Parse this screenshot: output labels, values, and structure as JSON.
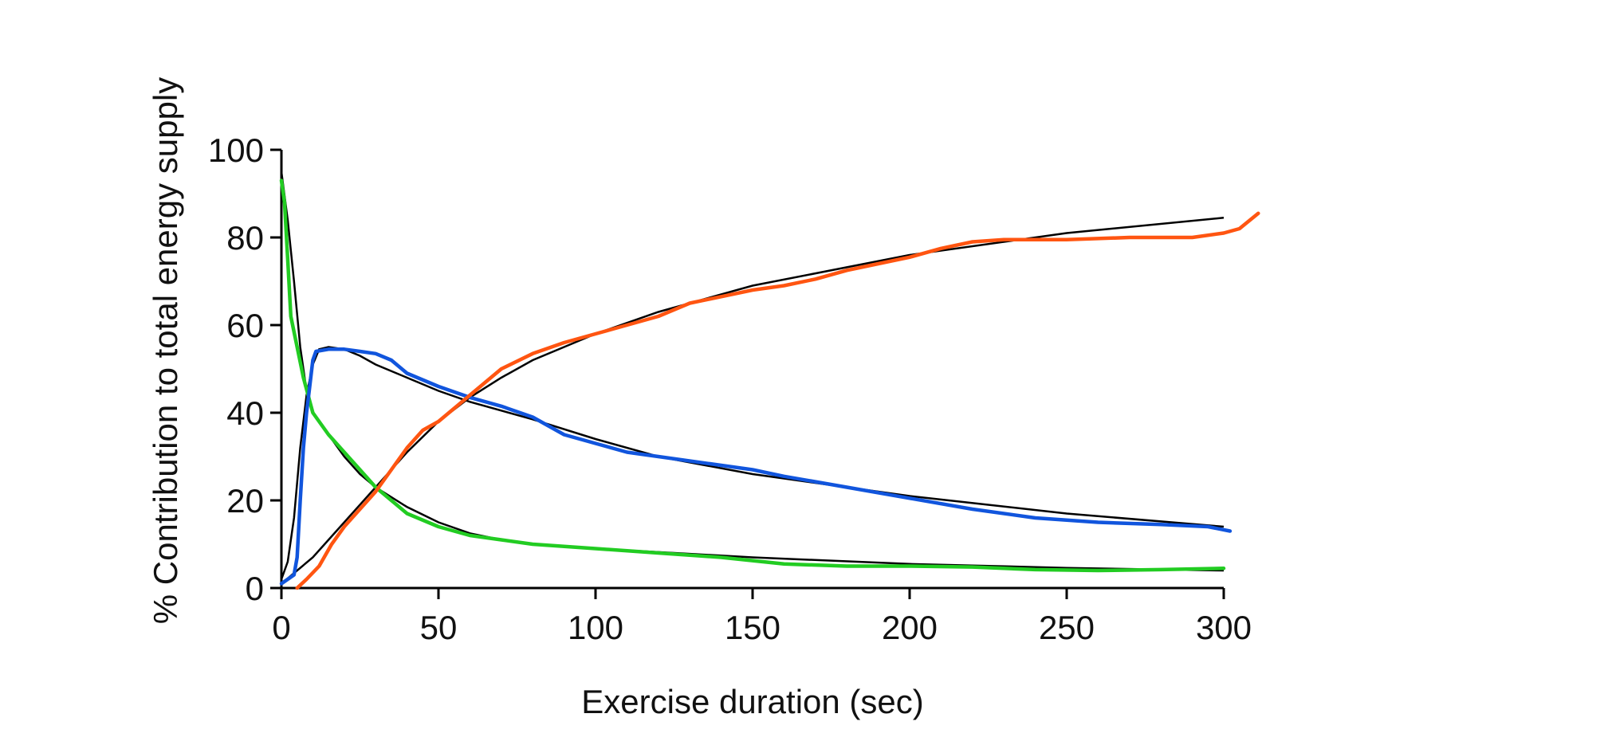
{
  "chart_data": {
    "type": "line",
    "title": "",
    "xlabel": "Exercise duration (sec)",
    "ylabel": "% Contribution to total energy supply",
    "xlim": [
      0,
      300
    ],
    "ylim": [
      0,
      100
    ],
    "x_ticks": [
      "0",
      "50",
      "100",
      "150",
      "200",
      "250",
      "300"
    ],
    "y_ticks": [
      "0",
      "20",
      "40",
      "60",
      "80",
      "100"
    ],
    "grid": false,
    "legend": "none",
    "series": [
      {
        "color": "#22cc22",
        "points": [
          [
            0,
            93
          ],
          [
            1,
            88
          ],
          [
            2,
            75
          ],
          [
            3,
            62
          ],
          [
            5,
            55
          ],
          [
            7,
            48
          ],
          [
            10,
            40
          ],
          [
            15,
            35
          ],
          [
            20,
            31
          ],
          [
            25,
            27
          ],
          [
            30,
            23
          ],
          [
            35,
            20
          ],
          [
            40,
            17
          ],
          [
            50,
            14
          ],
          [
            60,
            12
          ],
          [
            70,
            11
          ],
          [
            80,
            10
          ],
          [
            100,
            9
          ],
          [
            120,
            8
          ],
          [
            140,
            7
          ],
          [
            160,
            5.5
          ],
          [
            180,
            5
          ],
          [
            200,
            5
          ],
          [
            220,
            4.8
          ],
          [
            240,
            4.2
          ],
          [
            260,
            4
          ],
          [
            280,
            4.2
          ],
          [
            300,
            4.5
          ]
        ]
      },
      {
        "color": "#1155dd",
        "points": [
          [
            0,
            1
          ],
          [
            2,
            2
          ],
          [
            4,
            3
          ],
          [
            5,
            7
          ],
          [
            6,
            20
          ],
          [
            7,
            32
          ],
          [
            8,
            40
          ],
          [
            9,
            46
          ],
          [
            10,
            52
          ],
          [
            11,
            54
          ],
          [
            15,
            54.5
          ],
          [
            20,
            54.5
          ],
          [
            25,
            54
          ],
          [
            30,
            53.5
          ],
          [
            35,
            52
          ],
          [
            40,
            49
          ],
          [
            50,
            46
          ],
          [
            60,
            43.5
          ],
          [
            70,
            41.5
          ],
          [
            80,
            39
          ],
          [
            90,
            35
          ],
          [
            100,
            33
          ],
          [
            110,
            31
          ],
          [
            120,
            30
          ],
          [
            140,
            28
          ],
          [
            150,
            27
          ],
          [
            160,
            25.5
          ],
          [
            180,
            23
          ],
          [
            200,
            20.5
          ],
          [
            220,
            18
          ],
          [
            240,
            16
          ],
          [
            260,
            15
          ],
          [
            280,
            14.5
          ],
          [
            295,
            14
          ],
          [
            302,
            13
          ]
        ]
      },
      {
        "color": "#ff5511",
        "points": [
          [
            5,
            0
          ],
          [
            8,
            2
          ],
          [
            12,
            5
          ],
          [
            16,
            10
          ],
          [
            20,
            14
          ],
          [
            25,
            18
          ],
          [
            30,
            22
          ],
          [
            35,
            27
          ],
          [
            40,
            32
          ],
          [
            45,
            36
          ],
          [
            50,
            38
          ],
          [
            55,
            41
          ],
          [
            60,
            44
          ],
          [
            70,
            50
          ],
          [
            80,
            53.5
          ],
          [
            90,
            56
          ],
          [
            100,
            58
          ],
          [
            110,
            60
          ],
          [
            120,
            62
          ],
          [
            130,
            65
          ],
          [
            140,
            66.5
          ],
          [
            150,
            68
          ],
          [
            160,
            69
          ],
          [
            170,
            70.5
          ],
          [
            180,
            72.5
          ],
          [
            190,
            74
          ],
          [
            200,
            75.5
          ],
          [
            210,
            77.5
          ],
          [
            220,
            79
          ],
          [
            230,
            79.5
          ],
          [
            250,
            79.5
          ],
          [
            270,
            80
          ],
          [
            290,
            80
          ],
          [
            300,
            81
          ],
          [
            305,
            82
          ],
          [
            311,
            85.5
          ]
        ]
      }
    ],
    "fit_curves": [
      {
        "color": "#000000",
        "points": [
          [
            0,
            95
          ],
          [
            2,
            84
          ],
          [
            4,
            70
          ],
          [
            6,
            55
          ],
          [
            8,
            45
          ],
          [
            10,
            40
          ],
          [
            15,
            35
          ],
          [
            20,
            30
          ],
          [
            25,
            26
          ],
          [
            30,
            23
          ],
          [
            40,
            18.5
          ],
          [
            50,
            15
          ],
          [
            60,
            12.5
          ],
          [
            70,
            11
          ],
          [
            80,
            10
          ],
          [
            100,
            9
          ],
          [
            120,
            8.2
          ],
          [
            150,
            7
          ],
          [
            200,
            5.5
          ],
          [
            250,
            4.6
          ],
          [
            300,
            4
          ]
        ]
      },
      {
        "color": "#000000",
        "points": [
          [
            0,
            2
          ],
          [
            2,
            6
          ],
          [
            4,
            16
          ],
          [
            6,
            32
          ],
          [
            8,
            44
          ],
          [
            10,
            51
          ],
          [
            12,
            54.5
          ],
          [
            15,
            55
          ],
          [
            20,
            54.5
          ],
          [
            25,
            53
          ],
          [
            30,
            51
          ],
          [
            40,
            48
          ],
          [
            50,
            45
          ],
          [
            60,
            42.5
          ],
          [
            80,
            38.5
          ],
          [
            100,
            34
          ],
          [
            120,
            30
          ],
          [
            150,
            26
          ],
          [
            200,
            21
          ],
          [
            250,
            17
          ],
          [
            300,
            14
          ]
        ]
      },
      {
        "color": "#000000",
        "points": [
          [
            0,
            1
          ],
          [
            10,
            7
          ],
          [
            20,
            15
          ],
          [
            30,
            23
          ],
          [
            40,
            31
          ],
          [
            50,
            38
          ],
          [
            60,
            43.5
          ],
          [
            70,
            48
          ],
          [
            80,
            52
          ],
          [
            100,
            58
          ],
          [
            120,
            63
          ],
          [
            150,
            69
          ],
          [
            200,
            76
          ],
          [
            250,
            81
          ],
          [
            300,
            84.5
          ]
        ]
      }
    ]
  }
}
